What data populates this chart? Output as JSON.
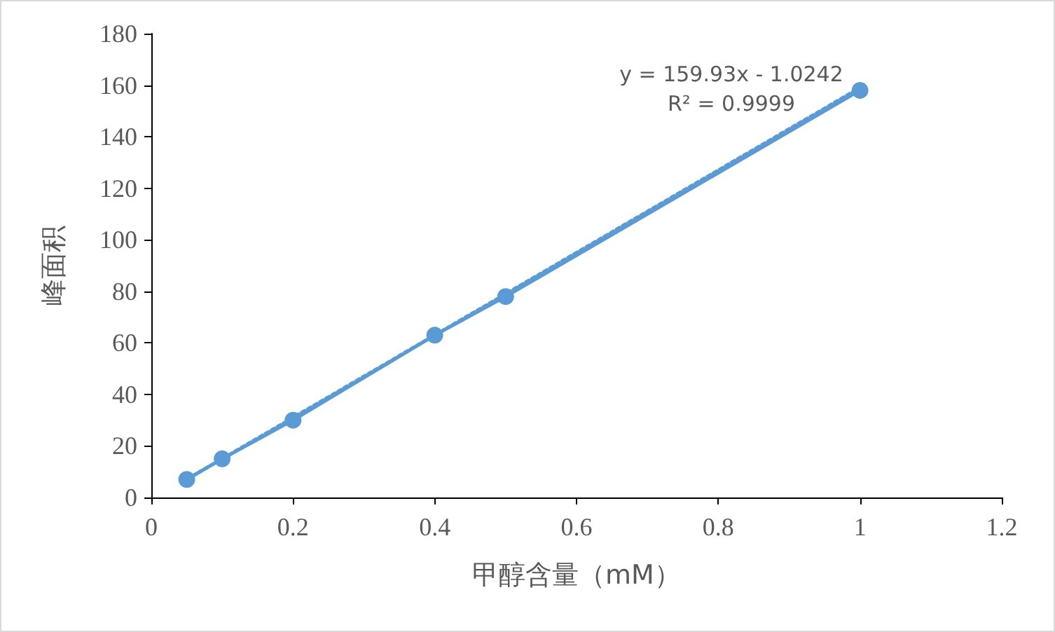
{
  "chart_data": {
    "type": "line",
    "xlabel": "甲醇含量（mM）",
    "ylabel": "峰面积",
    "annotations": [
      "y = 159.93x - 1.0242",
      "R² = 0.9999"
    ],
    "series": [
      {
        "x": [
          0.05,
          0.1,
          0.2,
          0.4,
          0.5,
          1
        ],
        "values": [
          7,
          15,
          30,
          63,
          78,
          158
        ],
        "color": "#5b9bd5",
        "marker": "circle",
        "line_style": "solid"
      },
      {
        "x": [
          0.05,
          1
        ],
        "values": [
          7,
          159
        ],
        "color": "#5b9bd5",
        "marker": "none",
        "line_style": "dotted"
      }
    ],
    "xlim": [
      0,
      1.2
    ],
    "xticks": [
      0,
      0.2,
      0.4,
      0.6,
      0.8,
      1,
      1.2
    ],
    "ylim": [
      0,
      180
    ],
    "yticks": [
      0,
      20,
      40,
      60,
      80,
      100,
      120,
      140,
      160,
      180
    ]
  }
}
